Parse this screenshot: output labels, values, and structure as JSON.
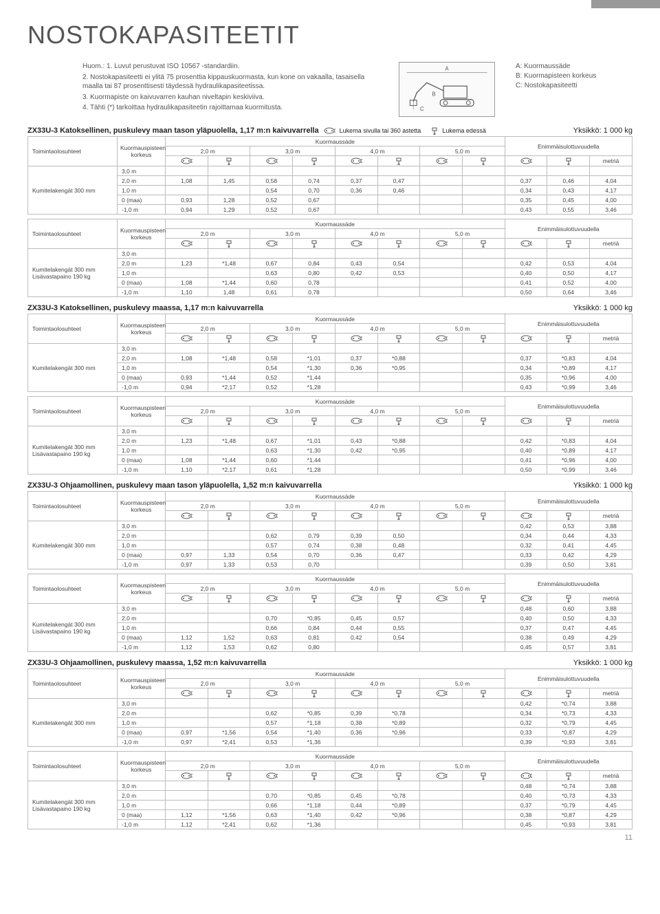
{
  "title": "NOSTOKAPASITEETIT",
  "notes": [
    "Huom.: 1. Luvut perustuvat ISO 10567 -standardiin.",
    "2. Nostokapasiteetti ei ylitä 75 prosenttia kippauskuormasta, kun kone on vakaalla, tasaisella maalla tai 87 prosenttisesti täydessä hydraulikapasiteetissa.",
    "3. Kuormapiste on kaivuvarren kauhan niveltapin keskiviiva.",
    "4. Tähti (*) tarkoittaa hydraulikapasiteetin rajoittamaa kuormitusta."
  ],
  "legend": {
    "a": "A: Kuormaussäde",
    "b": "B: Kuormapisteen korkeus",
    "c": "C: Nostokapasiteetti"
  },
  "hdr": {
    "toiminta": "Toimintaolosuhteet",
    "kp": "Kuormauspisteen korkeus",
    "ks": "Kuormaussäde",
    "cols": [
      "2,0 m",
      "3,0 m",
      "4,0 m",
      "5,0 m"
    ],
    "max": "Enimmäisulottuvuudella",
    "metria": "metriä",
    "side_desc": "Lukema sivulla tai 360 astetta",
    "front_desc": "Lukema edessä"
  },
  "cond": {
    "kumi": "Kumitelakengät 300 mm",
    "lisa": "Lisävastapaino 190 kg"
  },
  "rows_h": [
    "3,0 m",
    "2,0 m",
    "1,0 m",
    "0 (maa)",
    "-1,0 m"
  ],
  "sections": [
    {
      "title": "ZX33U-3 Katoksellinen, puskulevy maan tason yläpuolella, 1,17 m:n kaivuvarrella",
      "unit": "Yksikkö: 1 000 kg",
      "extraIcons": true,
      "tables": [
        {
          "cond": [
            "kumi"
          ],
          "rows": [
            [
              "",
              "",
              "",
              "",
              "",
              "",
              "",
              "",
              "",
              "",
              "",
              ""
            ],
            [
              "1,08",
              "1,45",
              "0,58",
              "0,74",
              "0,37",
              "0,47",
              "",
              "",
              "0,37",
              "0,46",
              "4,04"
            ],
            [
              "",
              "",
              "0,54",
              "0,70",
              "0,36",
              "0,46",
              "",
              "",
              "0,34",
              "0,43",
              "4,17"
            ],
            [
              "0,93",
              "1,28",
              "0,52",
              "0,67",
              "",
              "",
              "",
              "",
              "0,35",
              "0,45",
              "4,00"
            ],
            [
              "0,94",
              "1,29",
              "0,52",
              "0,67",
              "",
              "",
              "",
              "",
              "0,43",
              "0,55",
              "3,46"
            ]
          ]
        },
        {
          "cond": [
            "kumi",
            "lisa"
          ],
          "rows": [
            [
              "",
              "",
              "",
              "",
              "",
              "",
              "",
              "",
              "",
              "",
              "",
              ""
            ],
            [
              "1,23",
              "*1,48",
              "0,67",
              "0,84",
              "0,43",
              "0,54",
              "",
              "",
              "0,42",
              "0,53",
              "4,04"
            ],
            [
              "",
              "",
              "0,63",
              "0,80",
              "0,42",
              "0,53",
              "",
              "",
              "0,40",
              "0,50",
              "4,17"
            ],
            [
              "1,08",
              "*1,44",
              "0,60",
              "0,78",
              "",
              "",
              "",
              "",
              "0,41",
              "0,52",
              "4,00"
            ],
            [
              "1,10",
              "1,48",
              "0,61",
              "0,78",
              "",
              "",
              "",
              "",
              "0,50",
              "0,64",
              "3,46"
            ]
          ]
        }
      ]
    },
    {
      "title": "ZX33U-3 Katoksellinen, puskulevy maassa, 1,17 m:n kaivuvarrella",
      "unit": "Yksikkö: 1 000 kg",
      "tables": [
        {
          "cond": [
            "kumi"
          ],
          "rows": [
            [
              "",
              "",
              "",
              "",
              "",
              "",
              "",
              "",
              "",
              "",
              "",
              ""
            ],
            [
              "1,08",
              "*1,48",
              "0,58",
              "*1,01",
              "0,37",
              "*0,88",
              "",
              "",
              "0,37",
              "*0,83",
              "4,04"
            ],
            [
              "",
              "",
              "0,54",
              "*1,30",
              "0,36",
              "*0,95",
              "",
              "",
              "0,34",
              "*0,89",
              "4,17"
            ],
            [
              "0,93",
              "*1,44",
              "0,52",
              "*1,44",
              "",
              "",
              "",
              "",
              "0,35",
              "*0,96",
              "4,00"
            ],
            [
              "0,94",
              "*2,17",
              "0,52",
              "*1,28",
              "",
              "",
              "",
              "",
              "0,43",
              "*0,99",
              "3,46"
            ]
          ]
        },
        {
          "cond": [
            "kumi",
            "lisa"
          ],
          "rows": [
            [
              "",
              "",
              "",
              "",
              "",
              "",
              "",
              "",
              "",
              "",
              "",
              ""
            ],
            [
              "1,23",
              "*1,48",
              "0,67",
              "*1,01",
              "0,43",
              "*0,88",
              "",
              "",
              "0,42",
              "*0,83",
              "4,04"
            ],
            [
              "",
              "",
              "0,63",
              "*1,30",
              "0,42",
              "*0,95",
              "",
              "",
              "0,40",
              "*0,89",
              "4,17"
            ],
            [
              "1,08",
              "*1,44",
              "0,60",
              "*1,44",
              "",
              "",
              "",
              "",
              "0,41",
              "*0,96",
              "4,00"
            ],
            [
              "1,10",
              "*2,17",
              "0,61",
              "*1,28",
              "",
              "",
              "",
              "",
              "0,50",
              "*0,99",
              "3,46"
            ]
          ]
        }
      ]
    },
    {
      "title": "ZX33U-3 Ohjaamollinen, puskulevy maan tason yläpuolella, 1,52 m:n kaivuvarrella",
      "unit": "Yksikkö: 1 000 kg",
      "tables": [
        {
          "cond": [
            "kumi"
          ],
          "rows": [
            [
              "",
              "",
              "",
              "",
              "",
              "",
              "",
              "",
              "0,42",
              "0,53",
              "3,88"
            ],
            [
              "",
              "",
              "0,62",
              "0,79",
              "0,39",
              "0,50",
              "",
              "",
              "0,34",
              "0,44",
              "4,33"
            ],
            [
              "",
              "",
              "0,57",
              "0,74",
              "0,38",
              "0,48",
              "",
              "",
              "0,32",
              "0,41",
              "4,45"
            ],
            [
              "0,97",
              "1,33",
              "0,54",
              "0,70",
              "0,36",
              "0,47",
              "",
              "",
              "0,33",
              "0,42",
              "4,29"
            ],
            [
              "0,97",
              "1,33",
              "0,53",
              "0,70",
              "",
              "",
              "",
              "",
              "0,39",
              "0,50",
              "3,81"
            ]
          ]
        },
        {
          "cond": [
            "kumi",
            "lisa"
          ],
          "rows": [
            [
              "",
              "",
              "",
              "",
              "",
              "",
              "",
              "",
              "0,48",
              "0,60",
              "3,88"
            ],
            [
              "",
              "",
              "0,70",
              "*0,85",
              "0,45",
              "0,57",
              "",
              "",
              "0,40",
              "0,50",
              "4,33"
            ],
            [
              "",
              "",
              "0,66",
              "0,84",
              "0,44",
              "0,55",
              "",
              "",
              "0,37",
              "0,47",
              "4,45"
            ],
            [
              "1,12",
              "1,52",
              "0,63",
              "0,81",
              "0,42",
              "0,54",
              "",
              "",
              "0,38",
              "0,49",
              "4,29"
            ],
            [
              "1,12",
              "1,53",
              "0,62",
              "0,80",
              "",
              "",
              "",
              "",
              "0,45",
              "0,57",
              "3,81"
            ]
          ]
        }
      ]
    },
    {
      "title": "ZX33U-3 Ohjaamollinen, puskulevy maassa, 1,52 m:n kaivuvarrella",
      "unit": "Yksikkö: 1 000 kg",
      "tables": [
        {
          "cond": [
            "kumi"
          ],
          "rows": [
            [
              "",
              "",
              "",
              "",
              "",
              "",
              "",
              "",
              "0,42",
              "*0,74",
              "3,88"
            ],
            [
              "",
              "",
              "0,62",
              "*0,85",
              "0,39",
              "*0,78",
              "",
              "",
              "0,34",
              "*0,73",
              "4,33"
            ],
            [
              "",
              "",
              "0,57",
              "*1,18",
              "0,38",
              "*0,89",
              "",
              "",
              "0,32",
              "*0,79",
              "4,45"
            ],
            [
              "0,97",
              "*1,56",
              "0,54",
              "*1,40",
              "0,36",
              "*0,96",
              "",
              "",
              "0,33",
              "*0,87",
              "4,29"
            ],
            [
              "0,97",
              "*2,41",
              "0,53",
              "*1,36",
              "",
              "",
              "",
              "",
              "0,39",
              "*0,93",
              "3,81"
            ]
          ]
        },
        {
          "cond": [
            "kumi",
            "lisa"
          ],
          "rows": [
            [
              "",
              "",
              "",
              "",
              "",
              "",
              "",
              "",
              "0,48",
              "*0,74",
              "3,88"
            ],
            [
              "",
              "",
              "0,70",
              "*0,85",
              "0,45",
              "*0,78",
              "",
              "",
              "0,40",
              "*0,73",
              "4,33"
            ],
            [
              "",
              "",
              "0,66",
              "*1,18",
              "0,44",
              "*0,89",
              "",
              "",
              "0,37",
              "*0,79",
              "4,45"
            ],
            [
              "1,12",
              "*1,56",
              "0,63",
              "*1,40",
              "0,42",
              "*0,96",
              "",
              "",
              "0,38",
              "*0,87",
              "4,29"
            ],
            [
              "1,12",
              "*2,41",
              "0,62",
              "*1,36",
              "",
              "",
              "",
              "",
              "0,45",
              "*0,93",
              "3,81"
            ]
          ]
        }
      ]
    }
  ],
  "page": "11"
}
